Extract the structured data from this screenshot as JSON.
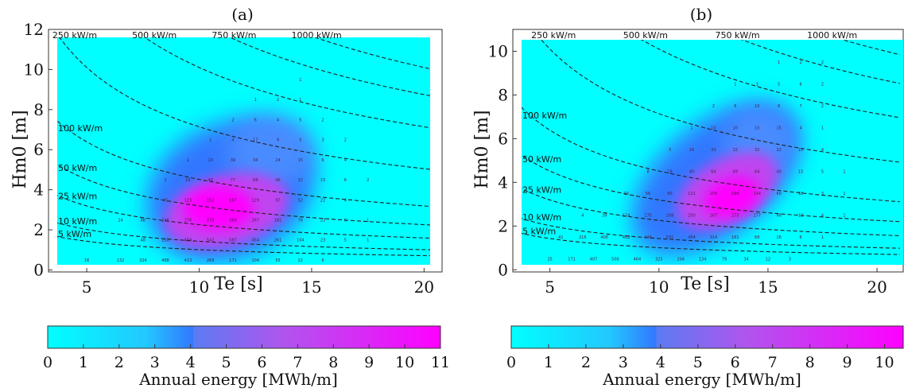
{
  "colors": {
    "low": "#00ffff",
    "mid": "#3377ff",
    "high": "#ff00ff",
    "isoline": "#222222"
  },
  "chart_data": [
    {
      "type": "heatmap",
      "panel_label": "(a)",
      "xlabel": "Te [s]",
      "ylabel": "Hm0 [m]",
      "xlim": [
        3.3,
        20.8
      ],
      "ylim": [
        -0.1,
        12
      ],
      "x_ticks": [
        "5",
        "10",
        "15",
        "20"
      ],
      "y_ticks": [
        "0",
        "2",
        "4",
        "6",
        "8",
        "10",
        "12"
      ],
      "colorbar": {
        "title": "Annual energy [MWh/m]",
        "min": 0,
        "max": 11,
        "ticks": [
          "0",
          "1",
          "2",
          "3",
          "4",
          "5",
          "6",
          "7",
          "8",
          "9",
          "10",
          "11"
        ]
      },
      "energy_peak": {
        "te": 11.2,
        "hm0": 3.0,
        "value": 11
      },
      "isolines": [
        {
          "label": "5 kW/m",
          "power": 5
        },
        {
          "label": "10 kW/m",
          "power": 10
        },
        {
          "label": "25 kW/m",
          "power": 25
        },
        {
          "label": "50 kW/m",
          "power": 50
        },
        {
          "label": "100 kW/m",
          "power": 100
        },
        {
          "label": "250 kW/m",
          "power": 250
        },
        {
          "label": "500 kW/m",
          "power": 500
        },
        {
          "label": "750 kW/m",
          "power": 750
        },
        {
          "label": "1000 kW/m",
          "power": 1000
        }
      ],
      "cell_values": [
        {
          "te": 3.5,
          "hm0": 0.5,
          "label": "1"
        },
        {
          "te": 5.0,
          "hm0": 0.5,
          "label": "16"
        },
        {
          "te": 6.5,
          "hm0": 0.5,
          "label": "132"
        },
        {
          "te": 7.5,
          "hm0": 0.5,
          "label": "324"
        },
        {
          "te": 8.5,
          "hm0": 0.5,
          "label": "488"
        },
        {
          "te": 9.5,
          "hm0": 0.5,
          "label": "413"
        },
        {
          "te": 10.5,
          "hm0": 0.5,
          "label": "269"
        },
        {
          "te": 11.5,
          "hm0": 0.5,
          "label": "171"
        },
        {
          "te": 12.5,
          "hm0": 0.5,
          "label": "104"
        },
        {
          "te": 13.5,
          "hm0": 0.5,
          "label": "55"
        },
        {
          "te": 14.5,
          "hm0": 0.5,
          "label": "22"
        },
        {
          "te": 15.5,
          "hm0": 0.5,
          "label": "6"
        },
        {
          "te": 7.5,
          "hm0": 1.5,
          "label": "48"
        },
        {
          "te": 8.5,
          "hm0": 1.5,
          "label": "250"
        },
        {
          "te": 9.5,
          "hm0": 1.5,
          "label": "459"
        },
        {
          "te": 10.5,
          "hm0": 1.5,
          "label": "543"
        },
        {
          "te": 11.5,
          "hm0": 1.5,
          "label": "587"
        },
        {
          "te": 12.5,
          "hm0": 1.5,
          "label": "454"
        },
        {
          "te": 13.5,
          "hm0": 1.5,
          "label": "261"
        },
        {
          "te": 14.5,
          "hm0": 1.5,
          "label": "104"
        },
        {
          "te": 15.5,
          "hm0": 1.5,
          "label": "23"
        },
        {
          "te": 16.5,
          "hm0": 1.5,
          "label": "5"
        },
        {
          "te": 17.5,
          "hm0": 1.5,
          "label": "1"
        },
        {
          "te": 6.5,
          "hm0": 2.5,
          "label": "14"
        },
        {
          "te": 7.5,
          "hm0": 2.5,
          "label": "88"
        },
        {
          "te": 8.5,
          "hm0": 2.5,
          "label": "246"
        },
        {
          "te": 9.5,
          "hm0": 2.5,
          "label": "276"
        },
        {
          "te": 10.5,
          "hm0": 2.5,
          "label": "278"
        },
        {
          "te": 11.5,
          "hm0": 2.5,
          "label": "284"
        },
        {
          "te": 12.5,
          "hm0": 2.5,
          "label": "267"
        },
        {
          "te": 13.5,
          "hm0": 2.5,
          "label": "181"
        },
        {
          "te": 14.5,
          "hm0": 2.5,
          "label": "76"
        },
        {
          "te": 15.5,
          "hm0": 2.5,
          "label": "23"
        },
        {
          "te": 16.5,
          "hm0": 2.5,
          "label": "6"
        },
        {
          "te": 17.5,
          "hm0": 2.5,
          "label": "1"
        },
        {
          "te": 8.5,
          "hm0": 3.5,
          "label": "45"
        },
        {
          "te": 9.5,
          "hm0": 3.5,
          "label": "123"
        },
        {
          "te": 10.5,
          "hm0": 3.5,
          "label": "152"
        },
        {
          "te": 11.5,
          "hm0": 3.5,
          "label": "167"
        },
        {
          "te": 12.5,
          "hm0": 3.5,
          "label": "129"
        },
        {
          "te": 13.5,
          "hm0": 3.5,
          "label": "97"
        },
        {
          "te": 14.5,
          "hm0": 3.5,
          "label": "52"
        },
        {
          "te": 15.5,
          "hm0": 3.5,
          "label": "22"
        },
        {
          "te": 16.5,
          "hm0": 3.5,
          "label": "4"
        },
        {
          "te": 8.5,
          "hm0": 4.5,
          "label": "2"
        },
        {
          "te": 9.5,
          "hm0": 4.5,
          "label": "16"
        },
        {
          "te": 10.5,
          "hm0": 4.5,
          "label": "48"
        },
        {
          "te": 11.5,
          "hm0": 4.5,
          "label": "77"
        },
        {
          "te": 12.5,
          "hm0": 4.5,
          "label": "68"
        },
        {
          "te": 13.5,
          "hm0": 4.5,
          "label": "46"
        },
        {
          "te": 14.5,
          "hm0": 4.5,
          "label": "32"
        },
        {
          "te": 15.5,
          "hm0": 4.5,
          "label": "15"
        },
        {
          "te": 16.5,
          "hm0": 4.5,
          "label": "6"
        },
        {
          "te": 17.5,
          "hm0": 4.5,
          "label": "2"
        },
        {
          "te": 9.5,
          "hm0": 5.5,
          "label": "2"
        },
        {
          "te": 10.5,
          "hm0": 5.5,
          "label": "10"
        },
        {
          "te": 11.5,
          "hm0": 5.5,
          "label": "39"
        },
        {
          "te": 12.5,
          "hm0": 5.5,
          "label": "34"
        },
        {
          "te": 13.5,
          "hm0": 5.5,
          "label": "24"
        },
        {
          "te": 14.5,
          "hm0": 5.5,
          "label": "15"
        },
        {
          "te": 15.5,
          "hm0": 5.5,
          "label": "6"
        },
        {
          "te": 16.5,
          "hm0": 5.5,
          "label": "4"
        },
        {
          "te": 10.5,
          "hm0": 6.5,
          "label": "1"
        },
        {
          "te": 11.5,
          "hm0": 6.5,
          "label": "4"
        },
        {
          "te": 12.5,
          "hm0": 6.5,
          "label": "17"
        },
        {
          "te": 13.5,
          "hm0": 6.5,
          "label": "9"
        },
        {
          "te": 14.5,
          "hm0": 6.5,
          "label": "5"
        },
        {
          "te": 15.5,
          "hm0": 6.5,
          "label": "3"
        },
        {
          "te": 16.5,
          "hm0": 6.5,
          "label": "2"
        },
        {
          "te": 11.5,
          "hm0": 7.5,
          "label": "2"
        },
        {
          "te": 12.5,
          "hm0": 7.5,
          "label": "6"
        },
        {
          "te": 13.5,
          "hm0": 7.5,
          "label": "4"
        },
        {
          "te": 14.5,
          "hm0": 7.5,
          "label": "5"
        },
        {
          "te": 15.5,
          "hm0": 7.5,
          "label": "2"
        },
        {
          "te": 12.5,
          "hm0": 8.5,
          "label": "1"
        },
        {
          "te": 13.5,
          "hm0": 8.5,
          "label": "2"
        },
        {
          "te": 14.5,
          "hm0": 8.5,
          "label": "1"
        },
        {
          "te": 14.5,
          "hm0": 9.5,
          "label": "1"
        }
      ]
    },
    {
      "type": "heatmap",
      "panel_label": "(b)",
      "xlabel": "Te [s]",
      "ylabel": "Hm0 [m]",
      "xlim": [
        3.3,
        21.2
      ],
      "ylim": [
        -0.1,
        11
      ],
      "x_ticks": [
        "5",
        "10",
        "15",
        "20"
      ],
      "y_ticks": [
        "0",
        "2",
        "4",
        "6",
        "8",
        "10"
      ],
      "colorbar": {
        "title": "Annual energy [MWh/m]",
        "min": 0,
        "max": 10.5,
        "ticks": [
          "0",
          "1",
          "2",
          "3",
          "4",
          "5",
          "6",
          "7",
          "8",
          "9",
          "10"
        ]
      },
      "energy_peak": {
        "te": 13.5,
        "hm0": 3.3,
        "value": 10.5
      },
      "isolines": [
        {
          "label": "5 kW/m",
          "power": 5
        },
        {
          "label": "10 kW/m",
          "power": 10
        },
        {
          "label": "25 kW/m",
          "power": 25
        },
        {
          "label": "50 kW/m",
          "power": 50
        },
        {
          "label": "100 kW/m",
          "power": 100
        },
        {
          "label": "250 kW/m",
          "power": 250
        },
        {
          "label": "500 kW/m",
          "power": 500
        },
        {
          "label": "750 kW/m",
          "power": 750
        },
        {
          "label": "1000 kW/m",
          "power": 1000
        }
      ],
      "cell_values": [
        {
          "te": 3.5,
          "hm0": 0.5,
          "label": "1"
        },
        {
          "te": 5.0,
          "hm0": 0.5,
          "label": "25"
        },
        {
          "te": 6.0,
          "hm0": 0.5,
          "label": "171"
        },
        {
          "te": 7.0,
          "hm0": 0.5,
          "label": "407"
        },
        {
          "te": 8.0,
          "hm0": 0.5,
          "label": "500"
        },
        {
          "te": 9.0,
          "hm0": 0.5,
          "label": "464"
        },
        {
          "te": 10.0,
          "hm0": 0.5,
          "label": "325"
        },
        {
          "te": 11.0,
          "hm0": 0.5,
          "label": "204"
        },
        {
          "te": 12.0,
          "hm0": 0.5,
          "label": "134"
        },
        {
          "te": 13.0,
          "hm0": 0.5,
          "label": "79"
        },
        {
          "te": 14.0,
          "hm0": 0.5,
          "label": "34"
        },
        {
          "te": 15.0,
          "hm0": 0.5,
          "label": "12"
        },
        {
          "te": 16.0,
          "hm0": 0.5,
          "label": "3"
        },
        {
          "te": 5.5,
          "hm0": 1.5,
          "label": "41"
        },
        {
          "te": 6.5,
          "hm0": 1.5,
          "label": "216"
        },
        {
          "te": 7.5,
          "hm0": 1.5,
          "label": "408"
        },
        {
          "te": 8.5,
          "hm0": 1.5,
          "label": "452"
        },
        {
          "te": 9.5,
          "hm0": 1.5,
          "label": "448"
        },
        {
          "te": 10.5,
          "hm0": 1.5,
          "label": "531"
        },
        {
          "te": 11.5,
          "hm0": 1.5,
          "label": "454"
        },
        {
          "te": 12.5,
          "hm0": 1.5,
          "label": "314"
        },
        {
          "te": 13.5,
          "hm0": 1.5,
          "label": "181"
        },
        {
          "te": 14.5,
          "hm0": 1.5,
          "label": "68"
        },
        {
          "te": 15.5,
          "hm0": 1.5,
          "label": "26"
        },
        {
          "te": 16.5,
          "hm0": 1.5,
          "label": "6"
        },
        {
          "te": 17.5,
          "hm0": 1.5,
          "label": "1"
        },
        {
          "te": 6.5,
          "hm0": 2.5,
          "label": "4"
        },
        {
          "te": 7.5,
          "hm0": 2.5,
          "label": "39"
        },
        {
          "te": 8.5,
          "hm0": 2.5,
          "label": "124"
        },
        {
          "te": 9.5,
          "hm0": 2.5,
          "label": "175"
        },
        {
          "te": 10.5,
          "hm0": 2.5,
          "label": "208"
        },
        {
          "te": 11.5,
          "hm0": 2.5,
          "label": "250"
        },
        {
          "te": 12.5,
          "hm0": 2.5,
          "label": "267"
        },
        {
          "te": 13.5,
          "hm0": 2.5,
          "label": "273"
        },
        {
          "te": 14.5,
          "hm0": 2.5,
          "label": "177"
        },
        {
          "te": 15.5,
          "hm0": 2.5,
          "label": "48"
        },
        {
          "te": 16.5,
          "hm0": 2.5,
          "label": "13"
        },
        {
          "te": 17.5,
          "hm0": 2.5,
          "label": "4"
        },
        {
          "te": 18.5,
          "hm0": 2.5,
          "label": "1"
        },
        {
          "te": 8.5,
          "hm0": 3.5,
          "label": "10"
        },
        {
          "te": 9.5,
          "hm0": 3.5,
          "label": "56"
        },
        {
          "te": 10.5,
          "hm0": 3.5,
          "label": "90"
        },
        {
          "te": 11.5,
          "hm0": 3.5,
          "label": "121"
        },
        {
          "te": 12.5,
          "hm0": 3.5,
          "label": "156"
        },
        {
          "te": 13.5,
          "hm0": 3.5,
          "label": "188"
        },
        {
          "te": 14.5,
          "hm0": 3.5,
          "label": "154"
        },
        {
          "te": 15.5,
          "hm0": 3.5,
          "label": "60"
        },
        {
          "te": 16.5,
          "hm0": 3.5,
          "label": "18"
        },
        {
          "te": 17.5,
          "hm0": 3.5,
          "label": "3"
        },
        {
          "te": 18.5,
          "hm0": 3.5,
          "label": "1"
        },
        {
          "te": 9.5,
          "hm0": 4.5,
          "label": "8"
        },
        {
          "te": 10.5,
          "hm0": 4.5,
          "label": "19"
        },
        {
          "te": 11.5,
          "hm0": 4.5,
          "label": "40"
        },
        {
          "te": 12.5,
          "hm0": 4.5,
          "label": "64"
        },
        {
          "te": 13.5,
          "hm0": 4.5,
          "label": "69"
        },
        {
          "te": 14.5,
          "hm0": 4.5,
          "label": "64"
        },
        {
          "te": 15.5,
          "hm0": 4.5,
          "label": "40"
        },
        {
          "te": 16.5,
          "hm0": 4.5,
          "label": "15"
        },
        {
          "te": 17.5,
          "hm0": 4.5,
          "label": "5"
        },
        {
          "te": 18.5,
          "hm0": 4.5,
          "label": "1"
        },
        {
          "te": 10.5,
          "hm0": 5.5,
          "label": "3"
        },
        {
          "te": 11.5,
          "hm0": 5.5,
          "label": "16"
        },
        {
          "te": 12.5,
          "hm0": 5.5,
          "label": "33"
        },
        {
          "te": 13.5,
          "hm0": 5.5,
          "label": "32"
        },
        {
          "te": 14.5,
          "hm0": 5.5,
          "label": "32"
        },
        {
          "te": 15.5,
          "hm0": 5.5,
          "label": "22"
        },
        {
          "te": 16.5,
          "hm0": 5.5,
          "label": "10"
        },
        {
          "te": 17.5,
          "hm0": 5.5,
          "label": "4"
        },
        {
          "te": 11.5,
          "hm0": 6.5,
          "label": "1"
        },
        {
          "te": 12.5,
          "hm0": 6.5,
          "label": "10"
        },
        {
          "te": 13.5,
          "hm0": 6.5,
          "label": "10"
        },
        {
          "te": 14.5,
          "hm0": 6.5,
          "label": "15"
        },
        {
          "te": 15.5,
          "hm0": 6.5,
          "label": "15"
        },
        {
          "te": 16.5,
          "hm0": 6.5,
          "label": "4"
        },
        {
          "te": 17.5,
          "hm0": 6.5,
          "label": "1"
        },
        {
          "te": 12.5,
          "hm0": 7.5,
          "label": "2"
        },
        {
          "te": 13.5,
          "hm0": 7.5,
          "label": "6"
        },
        {
          "te": 14.5,
          "hm0": 7.5,
          "label": "10"
        },
        {
          "te": 15.5,
          "hm0": 7.5,
          "label": "8"
        },
        {
          "te": 16.5,
          "hm0": 7.5,
          "label": "7"
        },
        {
          "te": 17.5,
          "hm0": 7.5,
          "label": "2"
        },
        {
          "te": 13.5,
          "hm0": 8.5,
          "label": "1"
        },
        {
          "te": 14.5,
          "hm0": 8.5,
          "label": "3"
        },
        {
          "te": 15.5,
          "hm0": 8.5,
          "label": "5"
        },
        {
          "te": 16.5,
          "hm0": 8.5,
          "label": "6"
        },
        {
          "te": 17.5,
          "hm0": 8.5,
          "label": "2"
        },
        {
          "te": 15.5,
          "hm0": 9.5,
          "label": "1"
        },
        {
          "te": 16.5,
          "hm0": 9.5,
          "label": "2"
        },
        {
          "te": 17.5,
          "hm0": 9.5,
          "label": "2"
        }
      ]
    }
  ]
}
